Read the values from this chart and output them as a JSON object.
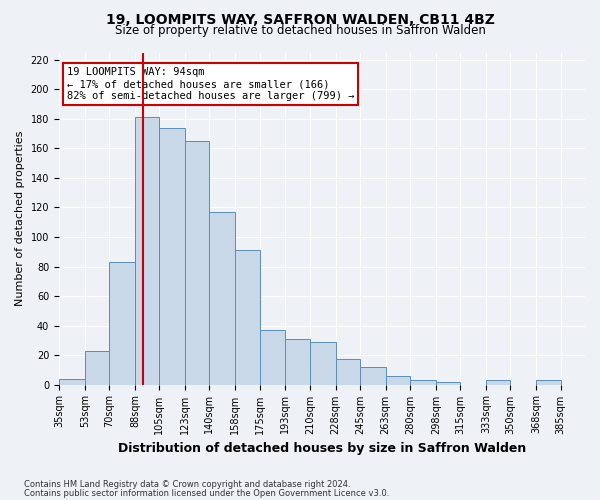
{
  "title1": "19, LOOMPITS WAY, SAFFRON WALDEN, CB11 4BZ",
  "title2": "Size of property relative to detached houses in Saffron Walden",
  "xlabel": "Distribution of detached houses by size in Saffron Walden",
  "ylabel": "Number of detached properties",
  "bin_labels": [
    "35sqm",
    "53sqm",
    "70sqm",
    "88sqm",
    "105sqm",
    "123sqm",
    "140sqm",
    "158sqm",
    "175sqm",
    "193sqm",
    "210sqm",
    "228sqm",
    "245sqm",
    "263sqm",
    "280sqm",
    "298sqm",
    "315sqm",
    "333sqm",
    "350sqm",
    "368sqm",
    "385sqm"
  ],
  "bin_edges": [
    35,
    53,
    70,
    88,
    105,
    123,
    140,
    158,
    175,
    193,
    210,
    228,
    245,
    263,
    280,
    298,
    315,
    333,
    350,
    368,
    385
  ],
  "bar_heights": [
    4,
    23,
    83,
    181,
    174,
    165,
    117,
    91,
    37,
    31,
    29,
    17,
    12,
    6,
    3,
    2,
    0,
    3,
    0,
    3
  ],
  "bar_color": "#c8d8e8",
  "bar_edge_color": "#5b8db8",
  "vline_x": 94,
  "vline_color": "#cc0000",
  "annotation_line1": "19 LOOMPITS WAY: 94sqm",
  "annotation_line2": "← 17% of detached houses are smaller (166)",
  "annotation_line3": "82% of semi-detached houses are larger (799) →",
  "annotation_box_color": "#ffffff",
  "annotation_box_edge_color": "#cc0000",
  "ylim": [
    0,
    225
  ],
  "yticks": [
    0,
    20,
    40,
    60,
    80,
    100,
    120,
    140,
    160,
    180,
    200,
    220
  ],
  "footnote1": "Contains HM Land Registry data © Crown copyright and database right 2024.",
  "footnote2": "Contains public sector information licensed under the Open Government Licence v3.0.",
  "bg_color": "#eef2f7",
  "grid_color": "#ffffff",
  "title1_fontsize": 10,
  "title2_fontsize": 8.5,
  "xlabel_fontsize": 9,
  "ylabel_fontsize": 8,
  "tick_fontsize": 7,
  "annot_fontsize": 7.5,
  "footnote_fontsize": 6
}
